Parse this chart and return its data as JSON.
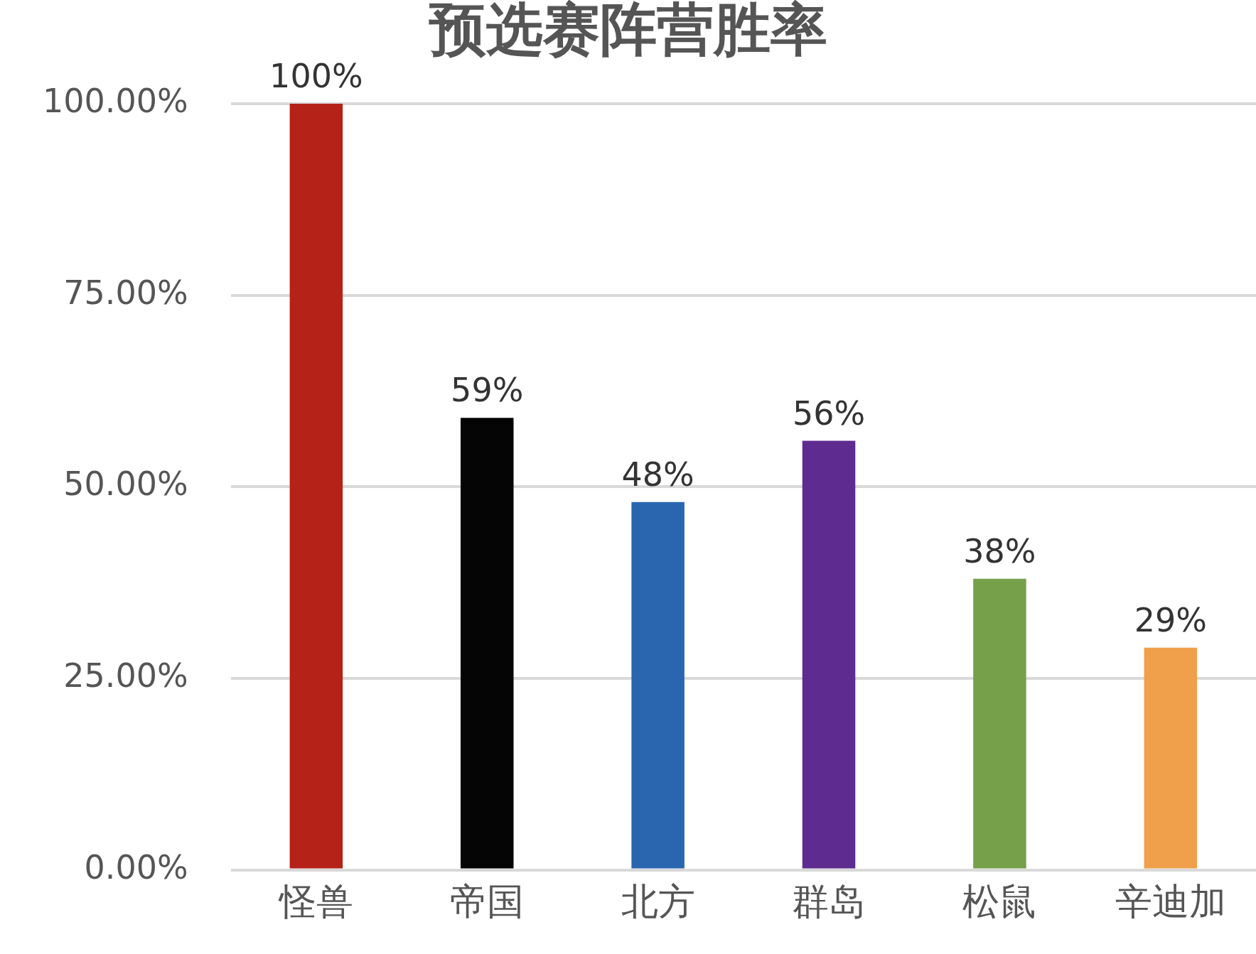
{
  "chart_data": {
    "type": "bar",
    "title": "预选赛阵营胜率",
    "categories": [
      "怪兽",
      "帝国",
      "北方",
      "群岛",
      "松鼠",
      "辛迪加"
    ],
    "values": [
      100,
      59,
      48,
      56,
      38,
      29
    ],
    "colors": [
      "#b52218",
      "#050505",
      "#2a66b0",
      "#5e2b90",
      "#76a04a",
      "#f0a04a"
    ],
    "value_labels": [
      "100%",
      "59%",
      "48%",
      "56%",
      "38%",
      "29%"
    ],
    "ylim": [
      0,
      100
    ],
    "yticks": [
      {
        "value": 0,
        "label": "0.00%"
      },
      {
        "value": 25,
        "label": "25.00%"
      },
      {
        "value": 50,
        "label": "50.00%"
      },
      {
        "value": 75,
        "label": "75.00%"
      },
      {
        "value": 100,
        "label": "100.00%"
      }
    ],
    "grid": "y",
    "legend": false
  }
}
